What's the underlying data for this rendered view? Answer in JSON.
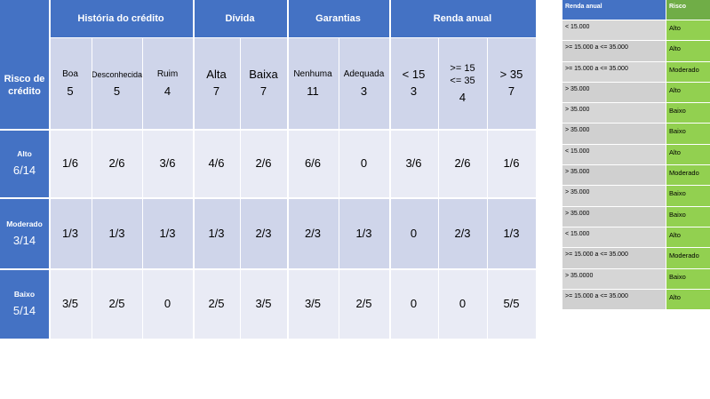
{
  "main_table": {
    "corner_label": "Risco de crédito",
    "groups": [
      "História do crédito",
      "Dívida",
      "Garantias",
      "Renda anual"
    ],
    "columns": [
      {
        "label": "Boa",
        "count": "5"
      },
      {
        "label": "Desconhecida",
        "count": "5"
      },
      {
        "label": "Ruim",
        "count": "4"
      },
      {
        "label": "Alta",
        "count": "7"
      },
      {
        "label": "Baixa",
        "count": "7"
      },
      {
        "label": "Nenhuma",
        "count": "11"
      },
      {
        "label": "Adequada",
        "count": "3"
      },
      {
        "label": "< 15",
        "count": "3"
      },
      {
        "label": ">= 15\n<= 35",
        "count": "4"
      },
      {
        "label": "> 35",
        "count": "7"
      }
    ],
    "rows": [
      {
        "label": "Alto",
        "prior": "6/14",
        "values": [
          "1/6",
          "2/6",
          "3/6",
          "4/6",
          "2/6",
          "6/6",
          "0",
          "3/6",
          "2/6",
          "1/6"
        ]
      },
      {
        "label": "Moderado",
        "prior": "3/14",
        "values": [
          "1/3",
          "1/3",
          "1/3",
          "1/3",
          "2/3",
          "2/3",
          "1/3",
          "0",
          "2/3",
          "1/3"
        ]
      },
      {
        "label": "Baixo",
        "prior": "5/14",
        "values": [
          "3/5",
          "2/5",
          "0",
          "2/5",
          "3/5",
          "3/5",
          "2/5",
          "0",
          "0",
          "5/5"
        ]
      }
    ]
  },
  "side_table": {
    "headers": [
      "Renda anual",
      "Risco"
    ],
    "rows": [
      [
        "< 15.000",
        "Alto"
      ],
      [
        ">= 15.000 a <= 35.000",
        "Alto"
      ],
      [
        ">= 15.000 a <= 35.000",
        "Moderado"
      ],
      [
        "> 35.000",
        "Alto"
      ],
      [
        "> 35.000",
        "Baixo"
      ],
      [
        "> 35.000",
        "Baixo"
      ],
      [
        "< 15.000",
        "Alto"
      ],
      [
        "> 35.000",
        "Moderado"
      ],
      [
        "> 35.000",
        "Baixo"
      ],
      [
        "> 35.000",
        "Baixo"
      ],
      [
        "< 15.000",
        "Alto"
      ],
      [
        ">= 15.000 a <= 35.000",
        "Moderado"
      ],
      [
        "> 35.0000",
        "Baixo"
      ],
      [
        ">= 15.000 a <= 35.000",
        "Alto"
      ]
    ]
  }
}
